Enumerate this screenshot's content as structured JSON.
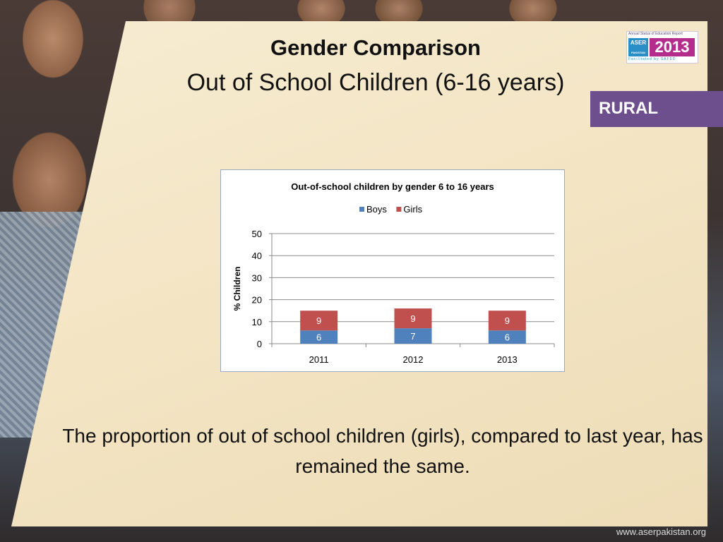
{
  "slide": {
    "title": "Gender Comparison",
    "subtitle": "Out of School Children (6-16 years)",
    "badge": "RURAL",
    "caption": "The proportion of out of school children (girls), compared to last year, has remained the same.",
    "website": "www.aserpakistan.org"
  },
  "logo": {
    "top_text": "Annual Status of Education Report",
    "aser": "ASER",
    "country": "PAKISTAN",
    "year": "2013",
    "bottom_text": "Facilitated by SAFED"
  },
  "colors": {
    "boys": "#4f81bd",
    "girls": "#c0504d",
    "badge": "#6d4f8e"
  },
  "chart_data": {
    "type": "bar",
    "stacked": true,
    "title": "Out-of-school children by gender 6 to 16 years",
    "ylabel": "% Children",
    "xlabel": "",
    "categories": [
      "2011",
      "2012",
      "2013"
    ],
    "series": [
      {
        "name": "Boys",
        "values": [
          6,
          7,
          6
        ]
      },
      {
        "name": "Girls",
        "values": [
          9,
          9,
          9
        ]
      }
    ],
    "ylim": [
      0,
      50
    ],
    "yticks": [
      0,
      10,
      20,
      30,
      40,
      50
    ],
    "grid": true,
    "legend": "top"
  }
}
